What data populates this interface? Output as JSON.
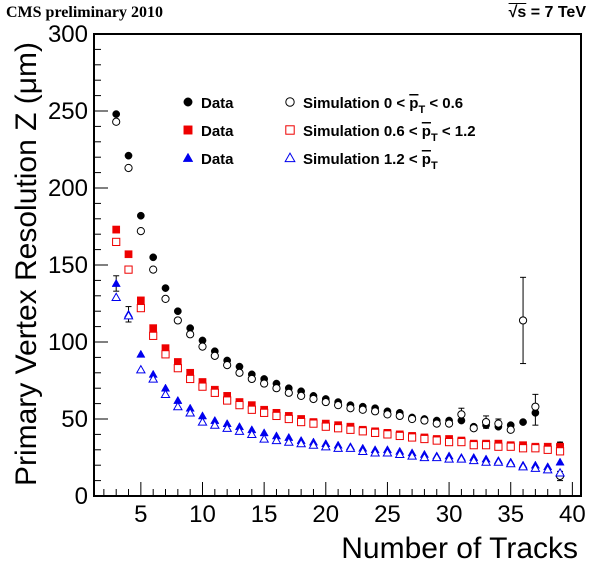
{
  "header": {
    "left": "CMS preliminary 2010",
    "right_sqrt": "√s",
    "right_rest": " = 7 TeV"
  },
  "chart_data": {
    "type": "scatter",
    "title": "",
    "xlabel": "Number of Tracks",
    "ylabel": "Primary Vertex Resolution Z (μm)",
    "xlim": [
      1.2,
      40.7
    ],
    "ylim": [
      0,
      300
    ],
    "xticks": [
      5,
      10,
      15,
      20,
      25,
      30,
      35,
      40
    ],
    "yticks": [
      0,
      50,
      100,
      150,
      200,
      250,
      300
    ],
    "grid": false,
    "legend_position": "top-center",
    "series": [
      {
        "name": "Data",
        "marker": "circle-filled",
        "color": "#000000",
        "points": [
          [
            3,
            248
          ],
          [
            4,
            221
          ],
          [
            5,
            182
          ],
          [
            6,
            155
          ],
          [
            7,
            135
          ],
          [
            8,
            120
          ],
          [
            9,
            109
          ],
          [
            10,
            101
          ],
          [
            11,
            94
          ],
          [
            12,
            88
          ],
          [
            13,
            84
          ],
          [
            14,
            79
          ],
          [
            15,
            76
          ],
          [
            16,
            73
          ],
          [
            17,
            70
          ],
          [
            18,
            68
          ],
          [
            19,
            65
          ],
          [
            20,
            63
          ],
          [
            21,
            61
          ],
          [
            22,
            59
          ],
          [
            23,
            58
          ],
          [
            24,
            57
          ],
          [
            25,
            55
          ],
          [
            26,
            54
          ],
          [
            27,
            51
          ],
          [
            28,
            50
          ],
          [
            29,
            49
          ],
          [
            30,
            49
          ],
          [
            31,
            49
          ],
          [
            32,
            45
          ],
          [
            33,
            46
          ],
          [
            34,
            45
          ],
          [
            35,
            46
          ],
          [
            36,
            48
          ],
          [
            37,
            54
          ],
          [
            38,
            ""
          ],
          [
            39,
            33
          ]
        ]
      },
      {
        "name": "Data",
        "marker": "square-filled",
        "color": "#ee0000",
        "points": [
          [
            3,
            173
          ],
          [
            4,
            157
          ],
          [
            5,
            127
          ],
          [
            6,
            109
          ],
          [
            7,
            96
          ],
          [
            8,
            87
          ],
          [
            9,
            80
          ],
          [
            10,
            74
          ],
          [
            11,
            69
          ],
          [
            12,
            65
          ],
          [
            13,
            61
          ],
          [
            14,
            59
          ],
          [
            15,
            56
          ],
          [
            16,
            54
          ],
          [
            17,
            52
          ],
          [
            18,
            50
          ],
          [
            19,
            48
          ],
          [
            20,
            47
          ],
          [
            21,
            46
          ],
          [
            22,
            45
          ],
          [
            23,
            43
          ],
          [
            24,
            42
          ],
          [
            25,
            41
          ],
          [
            26,
            40
          ],
          [
            27,
            39
          ],
          [
            28,
            38
          ],
          [
            29,
            37
          ],
          [
            30,
            37
          ],
          [
            31,
            36
          ],
          [
            32,
            34
          ],
          [
            33,
            34
          ],
          [
            34,
            34
          ],
          [
            35,
            33
          ],
          [
            36,
            33
          ],
          [
            37,
            32
          ],
          [
            38,
            32
          ],
          [
            39,
            32
          ]
        ]
      },
      {
        "name": "Data",
        "marker": "triangle-filled",
        "color": "#0000ee",
        "points": [
          [
            3,
            138
          ],
          [
            4,
            118
          ],
          [
            5,
            92
          ],
          [
            6,
            79
          ],
          [
            7,
            70
          ],
          [
            8,
            62
          ],
          [
            9,
            57
          ],
          [
            10,
            52
          ],
          [
            11,
            49
          ],
          [
            12,
            47
          ],
          [
            13,
            45
          ],
          [
            14,
            43
          ],
          [
            15,
            41
          ],
          [
            16,
            39
          ],
          [
            17,
            38
          ],
          [
            18,
            36
          ],
          [
            19,
            35
          ],
          [
            20,
            34
          ],
          [
            21,
            33
          ],
          [
            22,
            32
          ],
          [
            23,
            31
          ],
          [
            24,
            30
          ],
          [
            25,
            30
          ],
          [
            26,
            29
          ],
          [
            27,
            28
          ],
          [
            28,
            27
          ],
          [
            29,
            26
          ],
          [
            30,
            26
          ],
          [
            31,
            25
          ],
          [
            32,
            25
          ],
          [
            33,
            24
          ],
          [
            34,
            23
          ],
          [
            35,
            22
          ],
          [
            36,
            20
          ],
          [
            37,
            20
          ],
          [
            38,
            19
          ],
          [
            39,
            22
          ]
        ]
      },
      {
        "name": "Simulation 0 < p̄T < 0.6",
        "marker": "circle-open",
        "color": "#000000",
        "points": [
          [
            3,
            243
          ],
          [
            4,
            213
          ],
          [
            5,
            172
          ],
          [
            6,
            147
          ],
          [
            7,
            128
          ],
          [
            8,
            114
          ],
          [
            9,
            105
          ],
          [
            10,
            97
          ],
          [
            11,
            91
          ],
          [
            12,
            85
          ],
          [
            13,
            80
          ],
          [
            14,
            76
          ],
          [
            15,
            73
          ],
          [
            16,
            70
          ],
          [
            17,
            67
          ],
          [
            18,
            65
          ],
          [
            19,
            63
          ],
          [
            20,
            61
          ],
          [
            21,
            59
          ],
          [
            22,
            57
          ],
          [
            23,
            56
          ],
          [
            24,
            55
          ],
          [
            25,
            53
          ],
          [
            26,
            52
          ],
          [
            27,
            50
          ],
          [
            28,
            49
          ],
          [
            29,
            47
          ],
          [
            30,
            47
          ],
          [
            31,
            53
          ],
          [
            32,
            44
          ],
          [
            33,
            48
          ],
          [
            34,
            47
          ],
          [
            35,
            43
          ],
          [
            36,
            114
          ],
          [
            37,
            58
          ],
          [
            38,
            ""
          ],
          [
            39,
            13
          ]
        ]
      },
      {
        "name": "Simulation 0.6 < p̄T < 1.2",
        "marker": "square-open",
        "color": "#ee0000",
        "points": [
          [
            3,
            165
          ],
          [
            4,
            147
          ],
          [
            5,
            122
          ],
          [
            6,
            104
          ],
          [
            7,
            92
          ],
          [
            8,
            83
          ],
          [
            9,
            76
          ],
          [
            10,
            71
          ],
          [
            11,
            67
          ],
          [
            12,
            62
          ],
          [
            13,
            59
          ],
          [
            14,
            56
          ],
          [
            15,
            54
          ],
          [
            16,
            52
          ],
          [
            17,
            50
          ],
          [
            18,
            48
          ],
          [
            19,
            47
          ],
          [
            20,
            45
          ],
          [
            21,
            44
          ],
          [
            22,
            43
          ],
          [
            23,
            42
          ],
          [
            24,
            41
          ],
          [
            25,
            40
          ],
          [
            26,
            39
          ],
          [
            27,
            38
          ],
          [
            28,
            37
          ],
          [
            29,
            36
          ],
          [
            30,
            35
          ],
          [
            31,
            35
          ],
          [
            32,
            33
          ],
          [
            33,
            33
          ],
          [
            34,
            32
          ],
          [
            35,
            32
          ],
          [
            36,
            31
          ],
          [
            37,
            31
          ],
          [
            38,
            30
          ],
          [
            39,
            29
          ]
        ]
      },
      {
        "name": "Simulation 1.2 < p̄T",
        "marker": "triangle-open",
        "color": "#0000ee",
        "points": [
          [
            3,
            129
          ],
          [
            4,
            117
          ],
          [
            5,
            82
          ],
          [
            6,
            76
          ],
          [
            7,
            66
          ],
          [
            8,
            58
          ],
          [
            9,
            54
          ],
          [
            10,
            48
          ],
          [
            11,
            46
          ],
          [
            12,
            44
          ],
          [
            13,
            42
          ],
          [
            14,
            40
          ],
          [
            15,
            37
          ],
          [
            16,
            36
          ],
          [
            17,
            35
          ],
          [
            18,
            34
          ],
          [
            19,
            33
          ],
          [
            20,
            32
          ],
          [
            21,
            31
          ],
          [
            22,
            31
          ],
          [
            23,
            29
          ],
          [
            24,
            28
          ],
          [
            25,
            28
          ],
          [
            26,
            27
          ],
          [
            27,
            26
          ],
          [
            28,
            25
          ],
          [
            29,
            25
          ],
          [
            30,
            24
          ],
          [
            31,
            24
          ],
          [
            32,
            23
          ],
          [
            33,
            22
          ],
          [
            34,
            22
          ],
          [
            35,
            21
          ],
          [
            36,
            19
          ],
          [
            37,
            18
          ],
          [
            38,
            17
          ],
          [
            39,
            15
          ]
        ]
      }
    ],
    "error_bars": [
      [
        3,
        138,
        5
      ],
      [
        4,
        118,
        5
      ],
      [
        36,
        114,
        28
      ],
      [
        37,
        56,
        10
      ],
      [
        39,
        13,
        3
      ],
      [
        39,
        33,
        2
      ],
      [
        31,
        53,
        4
      ],
      [
        33,
        48,
        4
      ],
      [
        34,
        47,
        3
      ]
    ],
    "legend": {
      "entries": [
        {
          "label": "Data"
        },
        {
          "label": "Data"
        },
        {
          "label": "Data"
        },
        {
          "label_main": "Simulation 0 < ",
          "label_sub": "T",
          "label_tail": " < 0.6",
          "label_p": "p"
        },
        {
          "label_main": "Simulation 0.6 < ",
          "label_sub": "T",
          "label_tail": " < 1.2",
          "label_p": "p"
        },
        {
          "label_main": "Simulation 1.2 < ",
          "label_sub": "T",
          "label_tail": "",
          "label_p": "p"
        }
      ]
    }
  }
}
